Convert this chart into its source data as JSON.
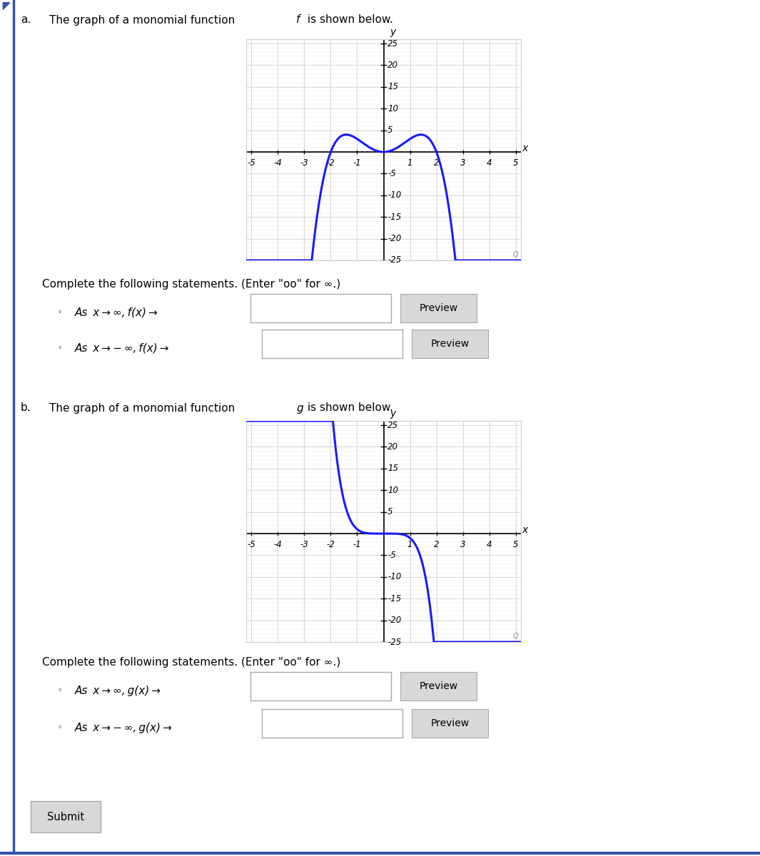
{
  "background_color": "#ffffff",
  "plot_bg_color": "#ffffff",
  "grid_color": "#cccccc",
  "grid_minor_color": "#e8e8e8",
  "curve_color": "#1a1aff",
  "axis_color": "#000000",
  "text_color": "#000000",
  "xlim": [
    -5.2,
    5.2
  ],
  "ylim": [
    -25,
    26
  ],
  "xticks": [
    -5,
    -4,
    -3,
    -2,
    -1,
    1,
    2,
    3,
    4,
    5
  ],
  "yticks": [
    -25,
    -20,
    -15,
    -10,
    -5,
    5,
    10,
    15,
    20,
    25
  ],
  "border_color": "#3355aa",
  "btn_color": "#d8d8d8",
  "btn_border": "#aaaaaa"
}
